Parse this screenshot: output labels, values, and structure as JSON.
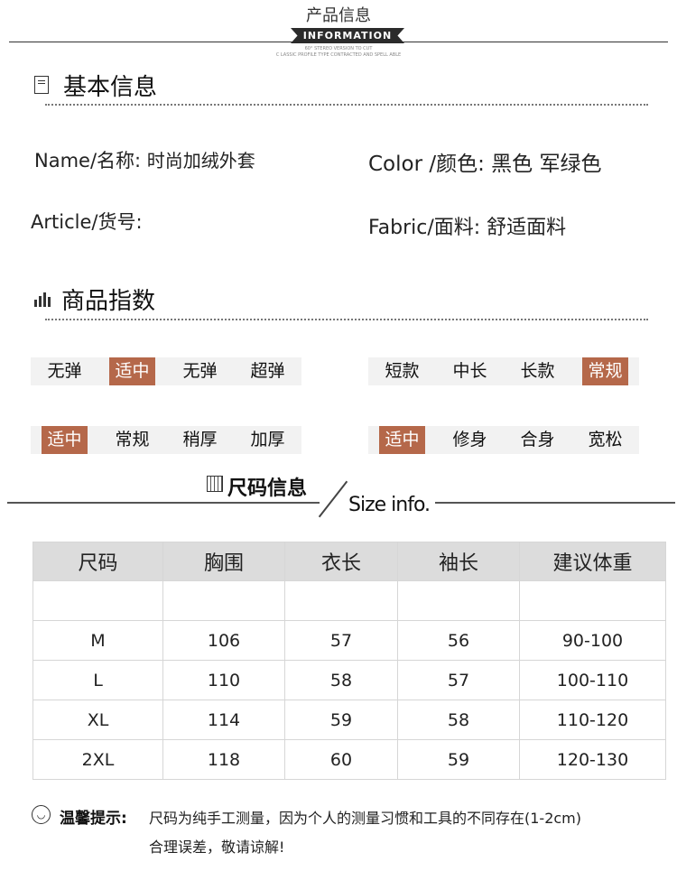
{
  "header": {
    "title": "产品信息",
    "ribbon": "INFORMATION",
    "sub1": "60° STEREO VERSION TO CUT",
    "sub2": "C LASSIC PROFILE TYPE CONTRACTED AND SPELL ABLE"
  },
  "basic": {
    "title": "基本信息",
    "name_label": "Name/名称:",
    "name_value": "时尚加绒外套",
    "color_label": "Color /颜色:",
    "color_value": "黑色 军绿色",
    "article_label": "Article/货号:",
    "fabric_label": "Fabric/面料:",
    "fabric_value": "舒适面料"
  },
  "index": {
    "title": "商品指数",
    "groups": [
      {
        "options": [
          "无弹",
          "适中",
          "无弹",
          "超弹"
        ],
        "selected": 1
      },
      {
        "options": [
          "短款",
          "中长",
          "长款",
          "常规"
        ],
        "selected": 3
      },
      {
        "options": [
          "适中",
          "常规",
          "稍厚",
          "加厚"
        ],
        "selected": 0
      },
      {
        "options": [
          "适中",
          "修身",
          "合身",
          "宽松"
        ],
        "selected": 0
      }
    ],
    "highlight_color": "#b5684a"
  },
  "size": {
    "title": "尺码信息",
    "title_en": "Size info.",
    "headers": [
      "尺码",
      "胸围",
      "衣长",
      "袖长",
      "建议体重"
    ],
    "rows": [
      [
        "M",
        "106",
        "57",
        "56",
        "90-100"
      ],
      [
        "L",
        "110",
        "58",
        "57",
        "100-110"
      ],
      [
        "XL",
        "114",
        "59",
        "58",
        "110-120"
      ],
      [
        "2XL",
        "118",
        "60",
        "59",
        "120-130"
      ]
    ]
  },
  "note": {
    "label": "温馨提示:",
    "line1": "尺码为纯手工测量，因为个人的测量习惯和工具的不同存在(1-2cm)",
    "line2": "合理误差，敬请谅解!"
  }
}
